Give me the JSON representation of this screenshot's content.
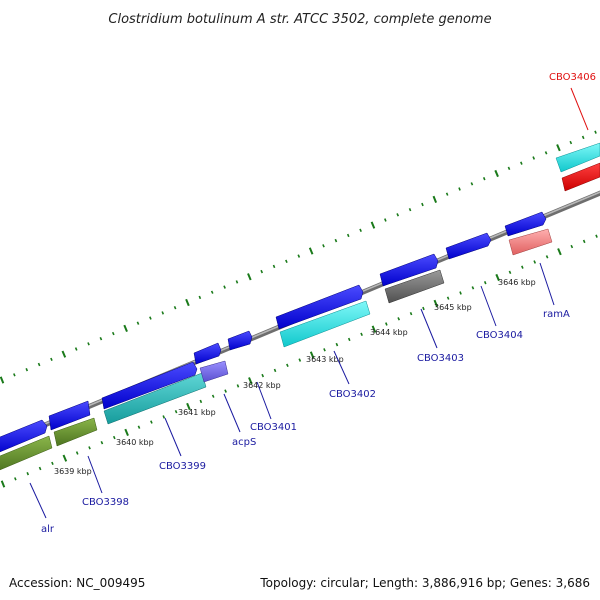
{
  "title": "Clostridium botulinum A str. ATCC 3502, complete genome",
  "footer": {
    "accession": "Accession: NC_009495",
    "summary": "Topology: circular; Length: 3,886,916 bp; Genes: 3,686"
  },
  "colors": {
    "backbone": "#888888",
    "tick": "#1a7a1a",
    "cds": "#1010e6",
    "label_default": "#1a1aa0",
    "label_highlight": "#e01010"
  },
  "scale_labels": [
    "3639 kbp",
    "3640 kbp",
    "3641 kbp",
    "3642 kbp",
    "3643 kbp",
    "3644 kbp",
    "3645 kbp",
    "3646 kbp"
  ],
  "gene_labels": [
    {
      "text": "alr",
      "color": "#1a1aa0"
    },
    {
      "text": "CBO3398",
      "color": "#1a1aa0"
    },
    {
      "text": "CBO3399",
      "color": "#1a1aa0"
    },
    {
      "text": "acpS",
      "color": "#1a1aa0"
    },
    {
      "text": "CBO3401",
      "color": "#1a1aa0"
    },
    {
      "text": "CBO3402",
      "color": "#1a1aa0"
    },
    {
      "text": "CBO3403",
      "color": "#1a1aa0"
    },
    {
      "text": "CBO3404",
      "color": "#1a1aa0"
    },
    {
      "text": "ramA",
      "color": "#1a1aa0"
    },
    {
      "text": "CBO3406",
      "color": "#e01010"
    }
  ]
}
